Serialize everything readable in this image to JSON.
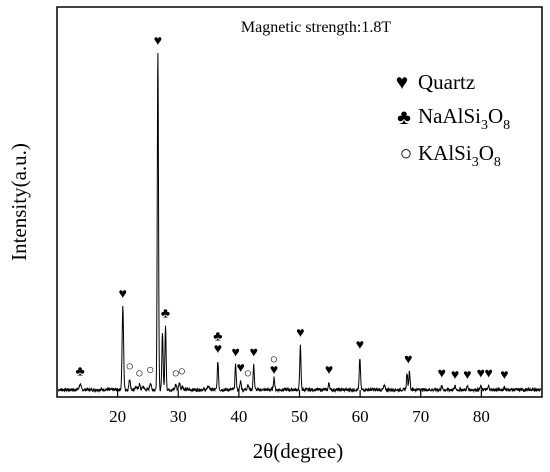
{
  "chart_data": {
    "type": "line",
    "title": "",
    "annotation": "Magnetic strength:1.8T",
    "xlabel": "2θ(degree)",
    "ylabel": "Intensity(a.u.)",
    "xlim": [
      10,
      90
    ],
    "ylim": [
      0,
      100
    ],
    "x_ticks": [
      20,
      30,
      40,
      50,
      60,
      70,
      80
    ],
    "y_ticks_shown": false,
    "grid": false,
    "legend_position": "top-right",
    "legend": [
      {
        "symbol": "♥",
        "symbol_name": "heart",
        "label": "Quartz",
        "formula": [
          {
            "t": "Quartz"
          }
        ]
      },
      {
        "symbol": "♣",
        "symbol_name": "club",
        "label": "NaAlSi3O8",
        "formula": [
          {
            "t": "NaAlSi"
          },
          {
            "sub": "3"
          },
          {
            "t": "O"
          },
          {
            "sub": "8"
          }
        ]
      },
      {
        "symbol": "○",
        "symbol_name": "open-circle",
        "label": "KAlSi3O8",
        "formula": [
          {
            "t": "KAlSi"
          },
          {
            "sub": "3"
          },
          {
            "t": "O"
          },
          {
            "sub": "8"
          }
        ]
      }
    ],
    "baseline": 1.5,
    "peaks": [
      {
        "x": 13.8,
        "y": 3.0,
        "w": 0.15
      },
      {
        "x": 20.86,
        "y": 25.0,
        "w": 0.12
      },
      {
        "x": 22.0,
        "y": 4.5,
        "w": 0.12
      },
      {
        "x": 23.1,
        "y": 2.5,
        "w": 0.12
      },
      {
        "x": 23.6,
        "y": 3.0,
        "w": 0.12
      },
      {
        "x": 24.2,
        "y": 2.5,
        "w": 0.12
      },
      {
        "x": 25.4,
        "y": 3.5,
        "w": 0.12
      },
      {
        "x": 26.64,
        "y": 98.0,
        "w": 0.1
      },
      {
        "x": 27.4,
        "y": 18.0,
        "w": 0.1
      },
      {
        "x": 27.9,
        "y": 19.5,
        "w": 0.1
      },
      {
        "x": 29.6,
        "y": 3.0,
        "w": 0.12
      },
      {
        "x": 30.2,
        "y": 3.5,
        "w": 0.12
      },
      {
        "x": 30.7,
        "y": 2.5,
        "w": 0.12
      },
      {
        "x": 35.0,
        "y": 2.5,
        "w": 0.15
      },
      {
        "x": 36.54,
        "y": 9.5,
        "w": 0.1
      },
      {
        "x": 39.46,
        "y": 8.5,
        "w": 0.1
      },
      {
        "x": 40.29,
        "y": 4.0,
        "w": 0.1
      },
      {
        "x": 41.5,
        "y": 3.0,
        "w": 0.12
      },
      {
        "x": 42.45,
        "y": 8.5,
        "w": 0.1
      },
      {
        "x": 45.8,
        "y": 5.0,
        "w": 0.1
      },
      {
        "x": 50.14,
        "y": 14.0,
        "w": 0.1
      },
      {
        "x": 54.87,
        "y": 3.5,
        "w": 0.1
      },
      {
        "x": 59.96,
        "y": 10.5,
        "w": 0.1
      },
      {
        "x": 64.0,
        "y": 2.5,
        "w": 0.12
      },
      {
        "x": 67.74,
        "y": 6.0,
        "w": 0.1
      },
      {
        "x": 68.14,
        "y": 7.0,
        "w": 0.1
      },
      {
        "x": 73.46,
        "y": 2.5,
        "w": 0.1
      },
      {
        "x": 75.66,
        "y": 2.5,
        "w": 0.1
      },
      {
        "x": 77.7,
        "y": 2.5,
        "w": 0.1
      },
      {
        "x": 79.9,
        "y": 2.5,
        "w": 0.1
      },
      {
        "x": 81.2,
        "y": 2.5,
        "w": 0.1
      },
      {
        "x": 83.8,
        "y": 2.2,
        "w": 0.1
      }
    ],
    "markers": [
      {
        "symbol": "♣",
        "phase": "NaAlSi3O8",
        "x": 13.8,
        "y": 5.5
      },
      {
        "symbol": "♥",
        "phase": "Quartz",
        "x": 20.86,
        "y": 27.5
      },
      {
        "symbol": "○",
        "phase": "KAlSi3O8",
        "x": 22.0,
        "y": 7.0
      },
      {
        "symbol": "○",
        "phase": "KAlSi3O8",
        "x": 23.6,
        "y": 5.0
      },
      {
        "symbol": "○",
        "phase": "KAlSi3O8",
        "x": 25.4,
        "y": 6.0
      },
      {
        "symbol": "♥",
        "phase": "Quartz",
        "x": 26.64,
        "y": 99.5
      },
      {
        "symbol": "♣",
        "phase": "NaAlSi3O8",
        "x": 27.9,
        "y": 22.0
      },
      {
        "symbol": "○",
        "phase": "KAlSi3O8",
        "x": 29.6,
        "y": 5.0
      },
      {
        "symbol": "○",
        "phase": "KAlSi3O8",
        "x": 30.6,
        "y": 5.5
      },
      {
        "symbol": "♣",
        "phase": "NaAlSi3O8",
        "x": 36.54,
        "y": 15.5
      },
      {
        "symbol": "♥",
        "phase": "Quartz",
        "x": 36.54,
        "y": 12.0
      },
      {
        "symbol": "♥",
        "phase": "Quartz",
        "x": 39.46,
        "y": 11.0
      },
      {
        "symbol": "♥",
        "phase": "Quartz",
        "x": 40.29,
        "y": 6.5
      },
      {
        "symbol": "○",
        "phase": "KAlSi3O8",
        "x": 41.5,
        "y": 5.0
      },
      {
        "symbol": "♥",
        "phase": "Quartz",
        "x": 42.45,
        "y": 11.0
      },
      {
        "symbol": "○",
        "phase": "KAlSi3O8",
        "x": 45.8,
        "y": 9.0
      },
      {
        "symbol": "♥",
        "phase": "Quartz",
        "x": 45.8,
        "y": 6.0
      },
      {
        "symbol": "♥",
        "phase": "Quartz",
        "x": 50.14,
        "y": 16.5
      },
      {
        "symbol": "♥",
        "phase": "Quartz",
        "x": 54.87,
        "y": 6.0
      },
      {
        "symbol": "♥",
        "phase": "Quartz",
        "x": 59.96,
        "y": 13.0
      },
      {
        "symbol": "♥",
        "phase": "Quartz",
        "x": 67.94,
        "y": 9.0
      },
      {
        "symbol": "♥",
        "phase": "Quartz",
        "x": 73.46,
        "y": 5.0
      },
      {
        "symbol": "♥",
        "phase": "Quartz",
        "x": 75.66,
        "y": 4.5
      },
      {
        "symbol": "♥",
        "phase": "Quartz",
        "x": 77.7,
        "y": 4.5
      },
      {
        "symbol": "♥",
        "phase": "Quartz",
        "x": 79.9,
        "y": 5.0
      },
      {
        "symbol": "♥",
        "phase": "Quartz",
        "x": 81.2,
        "y": 5.0
      },
      {
        "symbol": "♥",
        "phase": "Quartz",
        "x": 83.8,
        "y": 4.5
      }
    ]
  }
}
